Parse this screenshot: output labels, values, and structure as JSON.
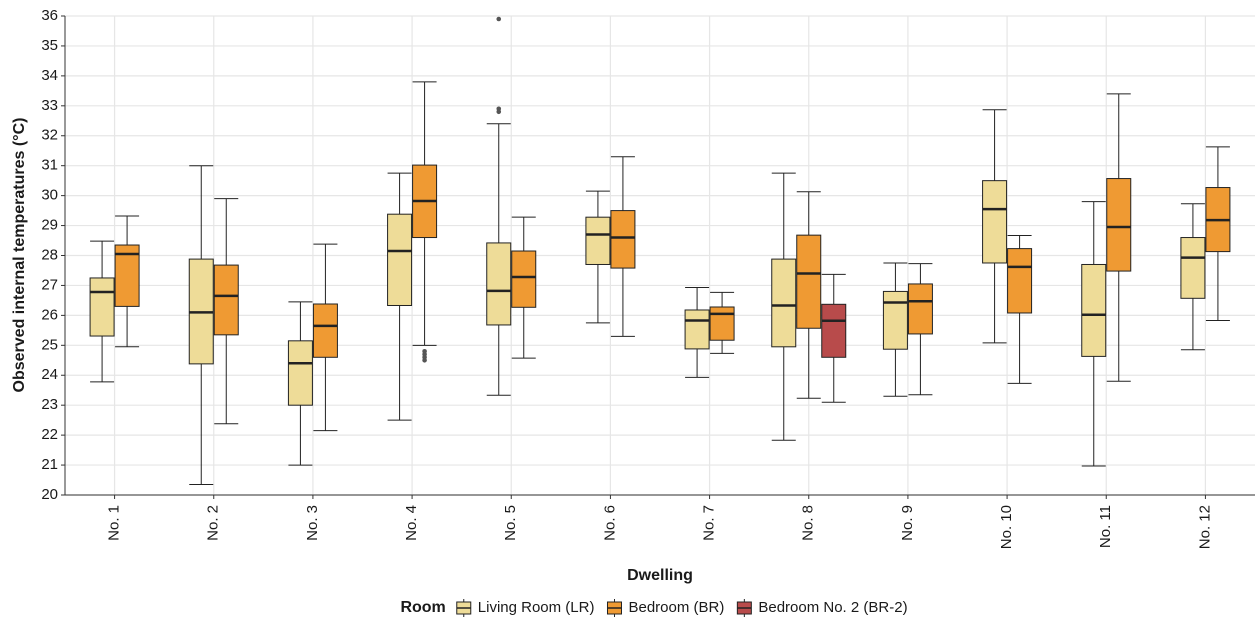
{
  "chart_data": {
    "type": "boxplot",
    "x_label": "Dwelling",
    "y_label": "Observed internal temperatures (°C)",
    "legend_title": "Room",
    "legend_position": "bottom",
    "grid": true,
    "categories": [
      "No. 1",
      "No. 2",
      "No. 3",
      "No. 4",
      "No. 5",
      "No. 6",
      "No. 7",
      "No. 8",
      "No. 9",
      "No. 10",
      "No. 11",
      "No. 12"
    ],
    "ylim": [
      20,
      36
    ],
    "yticks": [
      20,
      21,
      22,
      23,
      24,
      25,
      26,
      27,
      28,
      29,
      30,
      31,
      32,
      33,
      34,
      35,
      36
    ],
    "series": [
      {
        "name": "Living Room (LR)",
        "color": "#eedc98",
        "min": [
          23.78,
          20.35,
          21.0,
          22.5,
          23.33,
          25.75,
          23.93,
          21.83,
          23.3,
          25.08,
          20.97,
          24.85
        ],
        "q1": [
          25.31,
          24.38,
          23.0,
          26.33,
          25.68,
          27.7,
          24.88,
          24.95,
          24.87,
          27.75,
          24.63,
          26.57
        ],
        "median": [
          26.78,
          26.1,
          24.4,
          28.15,
          26.82,
          28.7,
          25.83,
          26.33,
          26.43,
          29.55,
          26.02,
          27.93
        ],
        "q3": [
          27.25,
          27.88,
          25.15,
          29.38,
          28.42,
          29.28,
          26.18,
          27.88,
          26.8,
          30.5,
          27.7,
          28.6
        ],
        "max": [
          28.48,
          31.0,
          26.45,
          30.75,
          32.4,
          30.15,
          26.93,
          30.75,
          27.75,
          32.87,
          29.8,
          29.73
        ],
        "outliers": [
          [],
          [],
          [],
          [],
          [
            32.8,
            32.9,
            35.9
          ],
          [],
          [],
          [],
          [],
          [],
          [],
          []
        ]
      },
      {
        "name": "Bedroom (BR)",
        "color": "#ef9a33",
        "min": [
          24.95,
          22.38,
          22.15,
          25.0,
          24.57,
          25.3,
          24.73,
          23.23,
          23.35,
          23.73,
          23.8,
          25.83
        ],
        "q1": [
          26.3,
          25.35,
          24.6,
          28.6,
          26.27,
          27.58,
          25.17,
          25.57,
          25.38,
          26.08,
          27.48,
          28.13
        ],
        "median": [
          28.05,
          26.65,
          25.65,
          29.82,
          27.28,
          28.6,
          26.05,
          27.4,
          26.47,
          27.62,
          28.95,
          29.18
        ],
        "q3": [
          28.35,
          27.68,
          26.38,
          31.02,
          28.15,
          29.5,
          26.28,
          28.68,
          27.05,
          28.23,
          30.57,
          30.27
        ],
        "max": [
          29.32,
          29.9,
          28.38,
          33.8,
          29.28,
          31.3,
          26.77,
          30.13,
          27.73,
          28.67,
          33.4,
          31.63
        ],
        "outliers": [
          [],
          [],
          [],
          [
            24.8,
            24.7,
            24.6,
            24.5
          ],
          [],
          [],
          [],
          [],
          [],
          [],
          [],
          []
        ]
      },
      {
        "name": "Bedroom No. 2 (BR-2)",
        "color": "#b84b4b",
        "min": [
          null,
          null,
          null,
          null,
          null,
          null,
          null,
          23.1,
          null,
          null,
          null,
          null
        ],
        "q1": [
          null,
          null,
          null,
          null,
          null,
          null,
          null,
          24.6,
          null,
          null,
          null,
          null
        ],
        "median": [
          null,
          null,
          null,
          null,
          null,
          null,
          null,
          25.82,
          null,
          null,
          null,
          null
        ],
        "q3": [
          null,
          null,
          null,
          null,
          null,
          null,
          null,
          26.37,
          null,
          null,
          null,
          null
        ],
        "max": [
          null,
          null,
          null,
          null,
          null,
          null,
          null,
          27.37,
          null,
          null,
          null,
          null
        ],
        "outliers": [
          [],
          [],
          [],
          [],
          [],
          [],
          [],
          [],
          [],
          [],
          [],
          []
        ]
      }
    ]
  }
}
